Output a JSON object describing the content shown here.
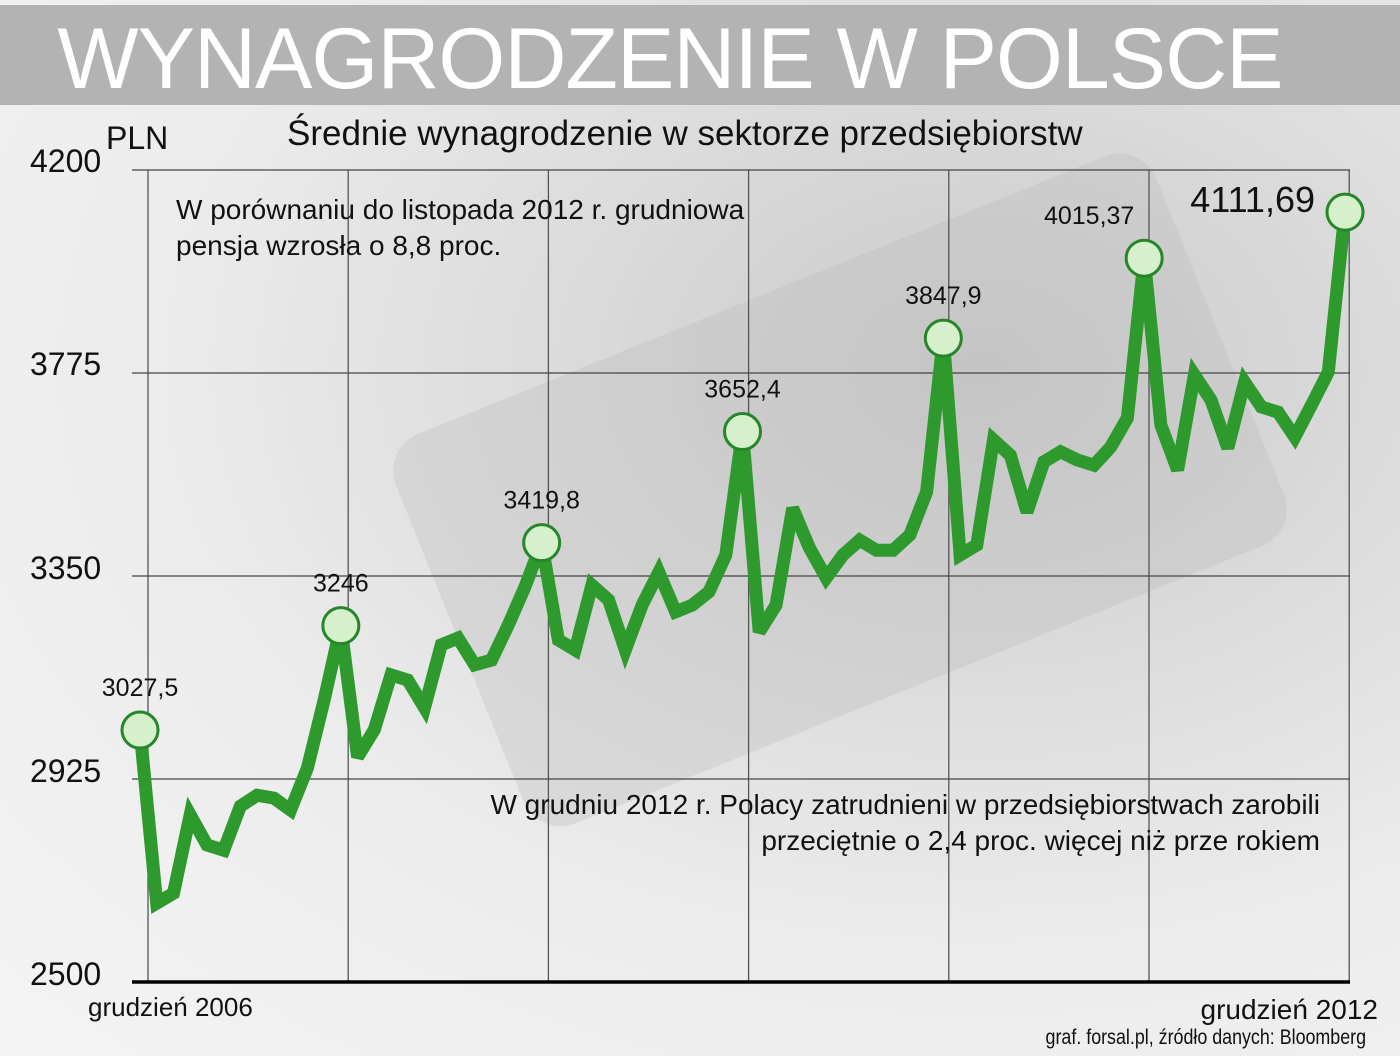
{
  "header": {
    "title": "WYNAGRODZENIE W POLSCE"
  },
  "chart_data": {
    "type": "line",
    "title": "Średnie wynagrodzenie w sektorze przedsiębiorstw",
    "ylabel": "PLN",
    "ylim": [
      2500,
      4200
    ],
    "yticks": [
      "4200",
      "3775",
      "3350",
      "2925",
      "2500"
    ],
    "ytick_values": [
      4200,
      3775,
      3350,
      2925,
      2500
    ],
    "x_start_label": "grudzień 2006",
    "x_end_label": "grudzień 2012",
    "x_unit": "month",
    "grid": true,
    "line_color": "#2e9a2e",
    "marker_fill": "#d6f0cc",
    "marker_stroke": "#25862a",
    "values": [
      3027.5,
      2665,
      2686,
      2850,
      2787,
      2776,
      2868,
      2891,
      2885,
      2860,
      2948,
      3090,
      3246,
      2971,
      3028,
      3143,
      3132,
      3074,
      3206,
      3220,
      3164,
      3174,
      3247,
      3327,
      3419.8,
      3216,
      3195,
      3331,
      3300,
      3195,
      3289,
      3358,
      3275,
      3289,
      3317,
      3394,
      3652.4,
      3233,
      3289,
      3492,
      3409,
      3346,
      3394,
      3425,
      3404,
      3404,
      3436,
      3526,
      3847.9,
      3394,
      3415,
      3635,
      3603,
      3484,
      3589,
      3610,
      3593,
      3582,
      3620,
      3681,
      4015.37,
      3666,
      3572,
      3771,
      3718,
      3618,
      3756,
      3704,
      3693,
      3641,
      3708,
      3777,
      4111.69
    ],
    "annotations": [
      {
        "index": 0,
        "text": "3027,5"
      },
      {
        "index": 12,
        "text": "3246"
      },
      {
        "index": 24,
        "text": "3419,8"
      },
      {
        "index": 36,
        "text": "3652,4"
      },
      {
        "index": 48,
        "text": "3847,9"
      },
      {
        "index": 60,
        "text": "4015,37"
      },
      {
        "index": 72,
        "text": "4111,69"
      }
    ],
    "notes": [
      {
        "line1": "W porównaniu do listopada 2012 r. grudniowa",
        "line2": "pensja wzrosła o 8,8 proc."
      },
      {
        "line1": "W grudniu 2012 r. Polacy zatrudnieni w przedsiębiorstwach zarobili",
        "line2": "przeciętnie o 2,4 proc. więcej niż prze rokiem"
      }
    ]
  },
  "footer": {
    "source": "graf. forsal.pl, źródło danych: Bloomberg"
  }
}
